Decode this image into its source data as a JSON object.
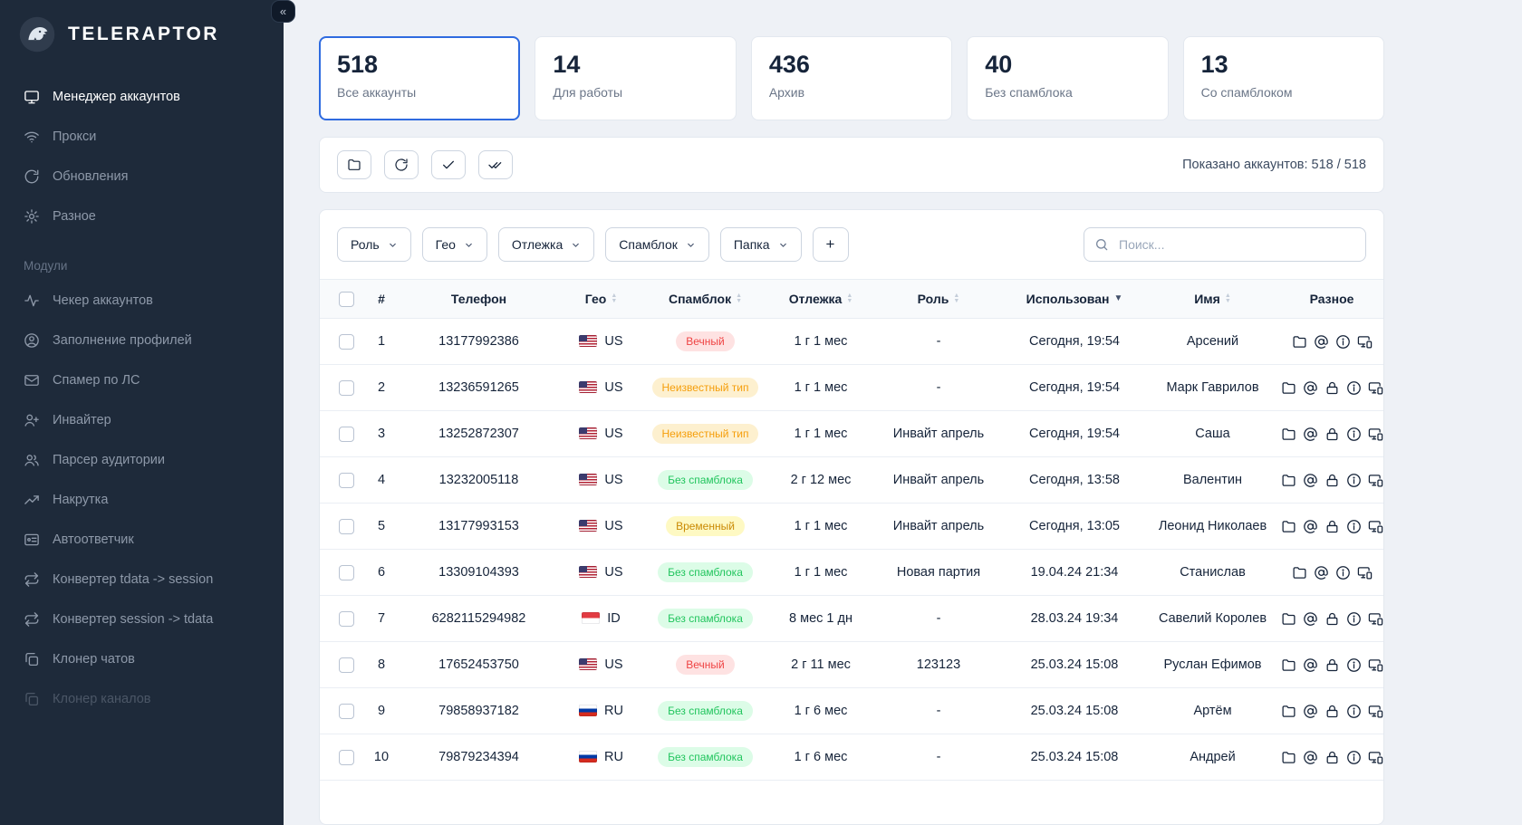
{
  "brand": {
    "name": "TELERAPTOR"
  },
  "sidebar": {
    "collapse_icon": "«",
    "items": [
      {
        "label": "Менеджер аккаунтов",
        "icon": "monitor-icon",
        "active": true
      },
      {
        "label": "Прокси",
        "icon": "wifi-icon",
        "active": false
      },
      {
        "label": "Обновления",
        "icon": "refresh-icon",
        "active": false
      },
      {
        "label": "Разное",
        "icon": "gear-icon",
        "active": false
      }
    ],
    "section_title": "Модули",
    "modules": [
      {
        "label": "Чекер аккаунтов",
        "icon": "activity-icon"
      },
      {
        "label": "Заполнение профилей",
        "icon": "user-circle-icon"
      },
      {
        "label": "Спамер по ЛС",
        "icon": "mail-icon"
      },
      {
        "label": "Инвайтер",
        "icon": "user-plus-icon"
      },
      {
        "label": "Парсер аудитории",
        "icon": "users-icon"
      },
      {
        "label": "Накрутка",
        "icon": "trending-up-icon"
      },
      {
        "label": "Автоответчик",
        "icon": "autoresponder-icon"
      },
      {
        "label": "Конвертер tdata -> session",
        "icon": "convert-icon"
      },
      {
        "label": "Конвертер session -> tdata",
        "icon": "convert-icon"
      },
      {
        "label": "Клонер чатов",
        "icon": "copy-icon"
      },
      {
        "label": "Клонер каналов",
        "icon": "copy-icon",
        "muted": true
      }
    ]
  },
  "stats": [
    {
      "value": "518",
      "label": "Все аккаунты",
      "selected": true
    },
    {
      "value": "14",
      "label": "Для работы",
      "selected": false
    },
    {
      "value": "436",
      "label": "Архив",
      "selected": false
    },
    {
      "value": "40",
      "label": "Без спамблока",
      "selected": false
    },
    {
      "value": "13",
      "label": "Со спамблоком",
      "selected": false
    }
  ],
  "toolbar": {
    "buttons": [
      {
        "icon": "folder-icon"
      },
      {
        "icon": "refresh-icon"
      },
      {
        "icon": "check-icon"
      },
      {
        "icon": "double-check-icon"
      }
    ],
    "shown_label": "Показано аккаунтов: 518 / 518"
  },
  "filters": {
    "dropdowns": [
      "Роль",
      "Гео",
      "Отлежка",
      "Спамблок",
      "Папка"
    ],
    "add_button": "+",
    "search": {
      "placeholder": "Поиск...",
      "value": ""
    }
  },
  "table": {
    "columns": [
      {
        "label": "#",
        "sortable": false
      },
      {
        "label": "Телефон",
        "sortable": false
      },
      {
        "label": "Гео",
        "sortable": true
      },
      {
        "label": "Спамблок",
        "sortable": true
      },
      {
        "label": "Отлежка",
        "sortable": true
      },
      {
        "label": "Роль",
        "sortable": true
      },
      {
        "label": "Использован",
        "sortable": true,
        "sorted": "desc"
      },
      {
        "label": "Имя",
        "sortable": true
      },
      {
        "label": "Разное",
        "sortable": false
      }
    ],
    "rows": [
      {
        "num": "1",
        "phone": "13177992386",
        "flag": "us",
        "geo": "US",
        "badge": {
          "label": "Вечный",
          "type": "red"
        },
        "age": "1 г 1 мес",
        "role": "-",
        "used": "Сегодня, 19:54",
        "name": "Арсений",
        "actions": [
          "folder-icon",
          "at-icon",
          "info-icon",
          "devices-icon"
        ]
      },
      {
        "num": "2",
        "phone": "13236591265",
        "flag": "us",
        "geo": "US",
        "badge": {
          "label": "Неизвестный тип",
          "type": "orange"
        },
        "age": "1 г 1 мес",
        "role": "-",
        "used": "Сегодня, 19:54",
        "name": "Марк Гаврилов",
        "actions": [
          "folder-icon",
          "at-icon",
          "lock-icon",
          "info-icon",
          "devices-icon"
        ]
      },
      {
        "num": "3",
        "phone": "13252872307",
        "flag": "us",
        "geo": "US",
        "badge": {
          "label": "Неизвестный тип",
          "type": "orange"
        },
        "age": "1 г 1 мес",
        "role": "Инвайт апрель",
        "used": "Сегодня, 19:54",
        "name": "Саша",
        "actions": [
          "folder-icon",
          "at-icon",
          "lock-icon",
          "info-icon",
          "devices-icon"
        ]
      },
      {
        "num": "4",
        "phone": "13232005118",
        "flag": "us",
        "geo": "US",
        "badge": {
          "label": "Без спамблока",
          "type": "green"
        },
        "age": "2 г 12 мес",
        "role": "Инвайт апрель",
        "used": "Сегодня, 13:58",
        "name": "Валентин",
        "actions": [
          "folder-icon",
          "at-icon",
          "lock-icon",
          "info-icon",
          "devices-icon"
        ]
      },
      {
        "num": "5",
        "phone": "13177993153",
        "flag": "us",
        "geo": "US",
        "badge": {
          "label": "Временный",
          "type": "yellow"
        },
        "age": "1 г 1 мес",
        "role": "Инвайт апрель",
        "used": "Сегодня, 13:05",
        "name": "Леонид Николаев",
        "actions": [
          "folder-icon",
          "at-icon",
          "lock-icon",
          "info-icon",
          "devices-icon"
        ]
      },
      {
        "num": "6",
        "phone": "13309104393",
        "flag": "us",
        "geo": "US",
        "badge": {
          "label": "Без спамблока",
          "type": "green"
        },
        "age": "1 г 1 мес",
        "role": "Новая партия",
        "used": "19.04.24 21:34",
        "name": "Станислав",
        "actions": [
          "folder-icon",
          "at-icon",
          "info-icon",
          "devices-icon"
        ]
      },
      {
        "num": "7",
        "phone": "6282115294982",
        "flag": "id",
        "geo": "ID",
        "badge": {
          "label": "Без спамблока",
          "type": "green"
        },
        "age": "8 мес 1 дн",
        "role": "-",
        "used": "28.03.24 19:34",
        "name": "Савелий Королев",
        "actions": [
          "folder-icon",
          "at-icon",
          "lock-icon",
          "info-icon",
          "devices-icon"
        ]
      },
      {
        "num": "8",
        "phone": "17652453750",
        "flag": "us",
        "geo": "US",
        "badge": {
          "label": "Вечный",
          "type": "red"
        },
        "age": "2 г 11 мес",
        "role": "123123",
        "used": "25.03.24 15:08",
        "name": "Руслан Ефимов",
        "actions": [
          "folder-icon",
          "at-icon",
          "lock-icon",
          "info-icon",
          "devices-icon"
        ]
      },
      {
        "num": "9",
        "phone": "79858937182",
        "flag": "ru",
        "geo": "RU",
        "badge": {
          "label": "Без спамблока",
          "type": "green"
        },
        "age": "1 г 6 мес",
        "role": "-",
        "used": "25.03.24 15:08",
        "name": "Артём",
        "actions": [
          "folder-icon",
          "at-icon",
          "lock-icon",
          "info-icon",
          "devices-icon"
        ]
      },
      {
        "num": "10",
        "phone": "79879234394",
        "flag": "ru",
        "geo": "RU",
        "badge": {
          "label": "Без спамблока",
          "type": "green"
        },
        "age": "1 г 6 мес",
        "role": "-",
        "used": "25.03.24 15:08",
        "name": "Андрей",
        "actions": [
          "folder-icon",
          "at-icon",
          "lock-icon",
          "info-icon",
          "devices-icon"
        ]
      }
    ]
  },
  "colors": {
    "accent": "#2f6be0",
    "sidebar_bg": "#1e2a3a",
    "badge": {
      "red_text": "#ef4444",
      "red_bg": "#fee2e2",
      "orange_text": "#f59e0b",
      "orange_bg": "#fdf0cf",
      "green_text": "#22c55e",
      "green_bg": "#dcfce7",
      "yellow_text": "#ca8a04",
      "yellow_bg": "#fef9c3"
    }
  }
}
